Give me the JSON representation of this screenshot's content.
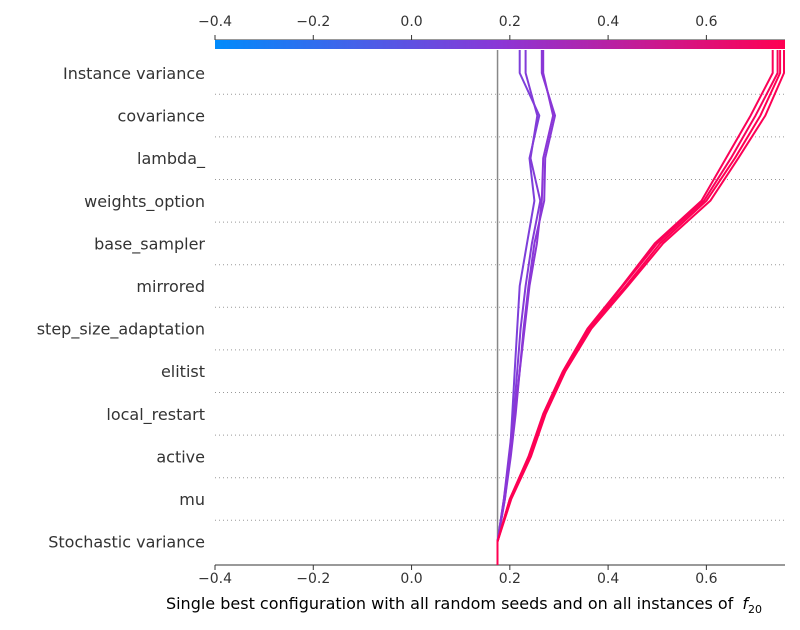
{
  "chart_data": {
    "type": "line",
    "title": "",
    "xlabel": "Single best configuration with all random seeds and on all instances of",
    "xlabel_math": {
      "base": "f",
      "sub": "20"
    },
    "xlim": [
      -0.4,
      0.76
    ],
    "x_ticks": [
      -0.4,
      -0.2,
      0.0,
      0.2,
      0.4,
      0.6
    ],
    "x_tick_labels": [
      "−0.4",
      "−0.2",
      "0.0",
      "0.2",
      "0.4",
      "0.6"
    ],
    "base_value": 0.175,
    "features": [
      "Instance variance",
      "covariance",
      "lambda_",
      "weights_option",
      "base_sampler",
      "mirrored",
      "step_size_adaptation",
      "elitist",
      "local_restart",
      "active",
      "mu",
      "Stochastic variance"
    ],
    "colormap": {
      "low": "#008bfb",
      "mid": "#8b36d6",
      "high": "#ff0052"
    },
    "series": [
      {
        "name": "path-1",
        "color_value": 0.45,
        "values": [
          0.175,
          0.175,
          0.19,
          0.2,
          0.205,
          0.21,
          0.215,
          0.22,
          0.235,
          0.25,
          0.24,
          0.26,
          0.22
        ]
      },
      {
        "name": "path-2",
        "color_value": 0.47,
        "values": [
          0.175,
          0.175,
          0.188,
          0.198,
          0.208,
          0.215,
          0.222,
          0.232,
          0.245,
          0.262,
          0.242,
          0.256,
          0.232
        ]
      },
      {
        "name": "path-3",
        "color_value": 0.49,
        "values": [
          0.175,
          0.175,
          0.19,
          0.202,
          0.212,
          0.22,
          0.228,
          0.238,
          0.25,
          0.27,
          0.272,
          0.292,
          0.265
        ]
      },
      {
        "name": "path-4",
        "color_value": 0.5,
        "values": [
          0.175,
          0.175,
          0.188,
          0.2,
          0.21,
          0.22,
          0.23,
          0.24,
          0.255,
          0.265,
          0.268,
          0.288,
          0.268
        ]
      },
      {
        "name": "path-5",
        "color_value": 0.97,
        "values": [
          0.175,
          0.175,
          0.2,
          0.24,
          0.27,
          0.31,
          0.36,
          0.43,
          0.5,
          0.595,
          0.65,
          0.7,
          0.745
        ]
      },
      {
        "name": "path-6",
        "color_value": 0.98,
        "values": [
          0.175,
          0.175,
          0.2,
          0.238,
          0.268,
          0.308,
          0.358,
          0.428,
          0.495,
          0.59,
          0.64,
          0.69,
          0.735
        ]
      },
      {
        "name": "path-7",
        "color_value": 0.99,
        "values": [
          0.175,
          0.175,
          0.203,
          0.243,
          0.273,
          0.313,
          0.366,
          0.44,
          0.512,
          0.608,
          0.665,
          0.72,
          0.758
        ]
      },
      {
        "name": "path-8",
        "color_value": 1.0,
        "values": [
          0.175,
          0.175,
          0.201,
          0.241,
          0.271,
          0.311,
          0.362,
          0.436,
          0.506,
          0.6,
          0.658,
          0.71,
          0.75
        ]
      }
    ]
  }
}
